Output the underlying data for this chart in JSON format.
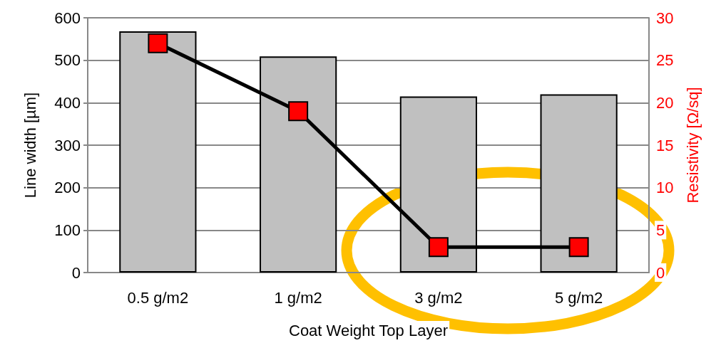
{
  "chart_data": {
    "type": "bar",
    "categories": [
      "0.5 g/m2",
      "1 g/m2",
      "3 g/m2",
      "5 g/m2"
    ],
    "xlabel": "Coat Weight Top Layer",
    "ylabel": "Line width [µm]",
    "y2label": "Resistivity [Ω/sq]",
    "series": [
      {
        "color": "#c0c0c0",
        "values": [
          568,
          509,
          415,
          420
        ]
      },
      {
        "type": "line",
        "axis": "y2",
        "color": "#ff0000",
        "marker": "square",
        "line_style": "solid",
        "values": [
          27,
          19,
          3,
          3
        ]
      }
    ],
    "ylim": [
      0,
      600
    ],
    "yticks": [
      0,
      100,
      200,
      300,
      400,
      500,
      600
    ],
    "y2lim": [
      0,
      30
    ],
    "y2ticks": [
      0,
      5,
      10,
      15,
      20,
      25,
      30
    ],
    "grid": "y"
  }
}
